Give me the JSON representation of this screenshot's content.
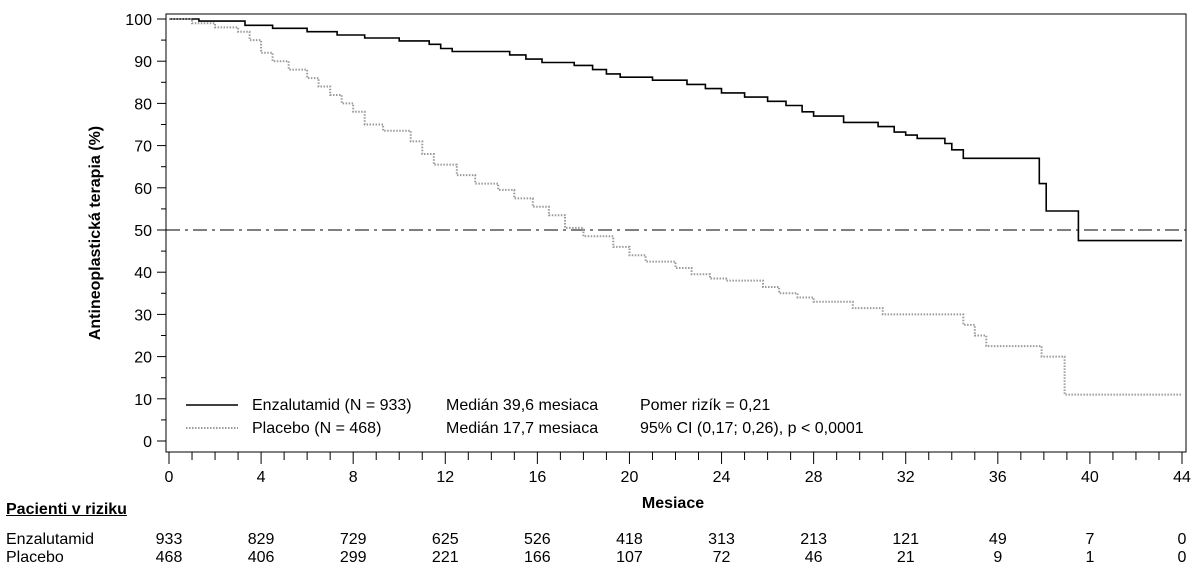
{
  "chart_data": {
    "type": "line",
    "title": "",
    "xlabel": "Mesiace",
    "ylabel": "Antineoplastická terapia (%)",
    "xlim": [
      0,
      44
    ],
    "ylim": [
      0,
      100
    ],
    "x_ticks": [
      0,
      4,
      8,
      12,
      16,
      20,
      24,
      28,
      32,
      36,
      40,
      44
    ],
    "y_ticks": [
      0,
      10,
      20,
      30,
      40,
      50,
      60,
      70,
      80,
      90,
      100
    ],
    "reference_line": {
      "y": 50,
      "style": "dash-dot"
    },
    "series": [
      {
        "name": "Enzalutamid (N = 933)",
        "color": "#000000",
        "style": "solid",
        "median": "Medián 39,6 mesiaca",
        "points": [
          [
            0,
            100
          ],
          [
            1.3,
            100
          ],
          [
            1.3,
            99.5
          ],
          [
            3.3,
            99.5
          ],
          [
            3.3,
            98.5
          ],
          [
            4.5,
            98.5
          ],
          [
            4.5,
            97.8
          ],
          [
            6,
            97.8
          ],
          [
            6,
            97
          ],
          [
            7.3,
            97
          ],
          [
            7.3,
            96.2
          ],
          [
            8.5,
            96.2
          ],
          [
            8.5,
            95.5
          ],
          [
            10,
            95.5
          ],
          [
            10,
            94.8
          ],
          [
            11.3,
            94.8
          ],
          [
            11.3,
            94
          ],
          [
            11.8,
            94
          ],
          [
            11.8,
            93
          ],
          [
            12.3,
            93
          ],
          [
            12.3,
            92.3
          ],
          [
            14.8,
            92.3
          ],
          [
            14.8,
            91.5
          ],
          [
            15.5,
            91.5
          ],
          [
            15.5,
            90.5
          ],
          [
            16.2,
            90.5
          ],
          [
            16.2,
            89.7
          ],
          [
            17.6,
            89.7
          ],
          [
            17.6,
            89
          ],
          [
            18.4,
            89
          ],
          [
            18.4,
            88
          ],
          [
            19,
            88
          ],
          [
            19,
            87
          ],
          [
            19.6,
            87
          ],
          [
            19.6,
            86.2
          ],
          [
            21,
            86.2
          ],
          [
            21,
            85.5
          ],
          [
            22.5,
            85.5
          ],
          [
            22.5,
            84.5
          ],
          [
            23.3,
            84.5
          ],
          [
            23.3,
            83.5
          ],
          [
            24,
            83.5
          ],
          [
            24,
            82.5
          ],
          [
            25,
            82.5
          ],
          [
            25,
            81.5
          ],
          [
            26,
            81.5
          ],
          [
            26,
            80.5
          ],
          [
            26.8,
            80.5
          ],
          [
            26.8,
            79.5
          ],
          [
            27.5,
            79.5
          ],
          [
            27.5,
            78
          ],
          [
            28,
            78
          ],
          [
            28,
            77
          ],
          [
            29.3,
            77
          ],
          [
            29.3,
            75.5
          ],
          [
            30.8,
            75.5
          ],
          [
            30.8,
            74.5
          ],
          [
            31.5,
            74.5
          ],
          [
            31.5,
            73.2
          ],
          [
            32,
            73.2
          ],
          [
            32,
            72.5
          ],
          [
            32.5,
            72.5
          ],
          [
            32.5,
            71.7
          ],
          [
            33.7,
            71.7
          ],
          [
            33.7,
            70.5
          ],
          [
            34,
            70.5
          ],
          [
            34,
            69
          ],
          [
            34.5,
            69
          ],
          [
            34.5,
            67
          ],
          [
            37.8,
            67
          ],
          [
            37.8,
            61
          ],
          [
            38.1,
            61
          ],
          [
            38.1,
            54.5
          ],
          [
            39.5,
            54.5
          ],
          [
            39.5,
            47.5
          ],
          [
            44,
            47.5
          ]
        ]
      },
      {
        "name": "Placebo (N = 468)",
        "color": "#9a9a9a",
        "style": "dotted",
        "median": "Medián 17,7 mesiaca",
        "points": [
          [
            0,
            100
          ],
          [
            1,
            100
          ],
          [
            1,
            99
          ],
          [
            2,
            99
          ],
          [
            2,
            98
          ],
          [
            3,
            98
          ],
          [
            3,
            97
          ],
          [
            3.5,
            97
          ],
          [
            3.5,
            95
          ],
          [
            4,
            95
          ],
          [
            4,
            92
          ],
          [
            4.5,
            92
          ],
          [
            4.5,
            90
          ],
          [
            5.2,
            90
          ],
          [
            5.2,
            88
          ],
          [
            6,
            88
          ],
          [
            6,
            86
          ],
          [
            6.5,
            86
          ],
          [
            6.5,
            84
          ],
          [
            7,
            84
          ],
          [
            7,
            82
          ],
          [
            7.5,
            82
          ],
          [
            7.5,
            80
          ],
          [
            8,
            80
          ],
          [
            8,
            78
          ],
          [
            8.5,
            78
          ],
          [
            8.5,
            75
          ],
          [
            9.3,
            75
          ],
          [
            9.3,
            73.5
          ],
          [
            10.5,
            73.5
          ],
          [
            10.5,
            71
          ],
          [
            11,
            71
          ],
          [
            11,
            68
          ],
          [
            11.5,
            68
          ],
          [
            11.5,
            65.5
          ],
          [
            12.5,
            65.5
          ],
          [
            12.5,
            63
          ],
          [
            13.3,
            63
          ],
          [
            13.3,
            61
          ],
          [
            14.3,
            61
          ],
          [
            14.3,
            59.5
          ],
          [
            15,
            59.5
          ],
          [
            15,
            57.5
          ],
          [
            15.8,
            57.5
          ],
          [
            15.8,
            55.5
          ],
          [
            16.5,
            55.5
          ],
          [
            16.5,
            53.5
          ],
          [
            17.2,
            53.5
          ],
          [
            17.2,
            50.5
          ],
          [
            18,
            50.5
          ],
          [
            18,
            48.5
          ],
          [
            19.3,
            48.5
          ],
          [
            19.3,
            46
          ],
          [
            20,
            46
          ],
          [
            20,
            44
          ],
          [
            20.7,
            44
          ],
          [
            20.7,
            42.5
          ],
          [
            22,
            42.5
          ],
          [
            22,
            41
          ],
          [
            22.7,
            41
          ],
          [
            22.7,
            39.5
          ],
          [
            23.5,
            39.5
          ],
          [
            23.5,
            38.5
          ],
          [
            24.2,
            38.5
          ],
          [
            24.2,
            38
          ],
          [
            25.8,
            38
          ],
          [
            25.8,
            36.5
          ],
          [
            26.5,
            36.5
          ],
          [
            26.5,
            35
          ],
          [
            27.3,
            35
          ],
          [
            27.3,
            34
          ],
          [
            28,
            34
          ],
          [
            28,
            33
          ],
          [
            29.7,
            33
          ],
          [
            29.7,
            31.5
          ],
          [
            31,
            31.5
          ],
          [
            31,
            30
          ],
          [
            34.5,
            30
          ],
          [
            34.5,
            27.5
          ],
          [
            35,
            27.5
          ],
          [
            35,
            25
          ],
          [
            35.5,
            25
          ],
          [
            35.5,
            22.5
          ],
          [
            37.9,
            22.5
          ],
          [
            37.9,
            20
          ],
          [
            38.9,
            20
          ],
          [
            38.9,
            11
          ],
          [
            44,
            11
          ]
        ]
      }
    ],
    "legend": {
      "position": "bottom-left",
      "hazard_ratio": "Pomer rizík = 0,21",
      "ci_text": "95% CI (0,17; 0,26), p < 0,0001"
    }
  },
  "risk_table": {
    "title": "Pacienti v riziku",
    "times": [
      0,
      4,
      8,
      12,
      16,
      20,
      24,
      28,
      32,
      36,
      40,
      44
    ],
    "rows": [
      {
        "label": "Enzalutamid",
        "values": [
          "933",
          "829",
          "729",
          "625",
          "526",
          "418",
          "313",
          "213",
          "121",
          "49",
          "7",
          "0"
        ]
      },
      {
        "label": "Placebo",
        "values": [
          "468",
          "406",
          "299",
          "221",
          "166",
          "107",
          "72",
          "46",
          "21",
          "9",
          "1",
          "0"
        ]
      }
    ]
  }
}
